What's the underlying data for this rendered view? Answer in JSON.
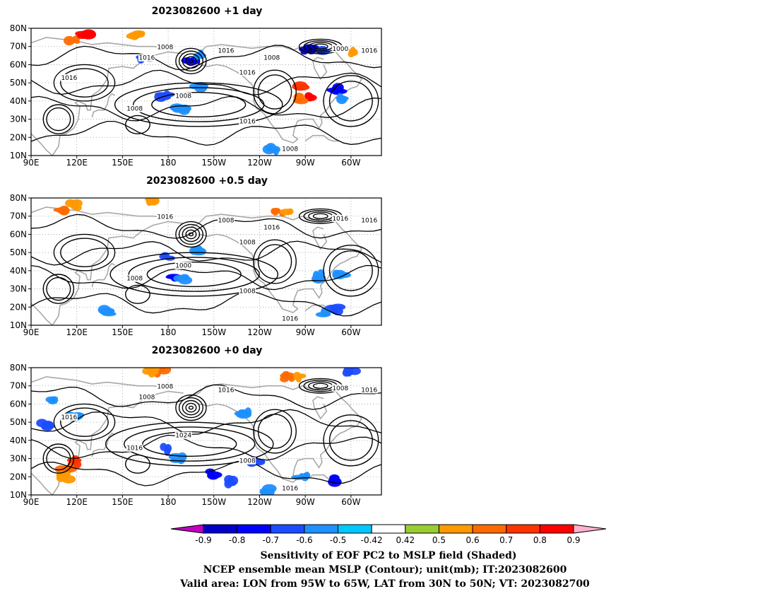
{
  "panels": [
    {
      "title": "2023082600  +1 day",
      "contour_labels": [
        "1008",
        "1016",
        "1016",
        "1016",
        "1008",
        "1016",
        "1008",
        "1000",
        "1016",
        "1016",
        "1008",
        "1008"
      ],
      "shading": [
        {
          "lon": 118,
          "lat": 74,
          "v": 0.6
        },
        {
          "lon": 125,
          "lat": 76,
          "v": 0.8
        },
        {
          "lon": 160,
          "lat": 77,
          "v": 0.5
        },
        {
          "lon": 165,
          "lat": 63,
          "v": -0.6
        },
        {
          "lon": 195,
          "lat": 63,
          "v": -0.7
        },
        {
          "lon": 200,
          "lat": 65,
          "v": -0.5
        },
        {
          "lon": 178,
          "lat": 43,
          "v": -0.6
        },
        {
          "lon": 188,
          "lat": 35,
          "v": -0.5
        },
        {
          "lon": 200,
          "lat": 47,
          "v": -0.5
        },
        {
          "lon": 268,
          "lat": 47,
          "v": 0.7
        },
        {
          "lon": 272,
          "lat": 43,
          "v": 0.8
        },
        {
          "lon": 265,
          "lat": 41,
          "v": 0.6
        },
        {
          "lon": 290,
          "lat": 46,
          "v": -0.7
        },
        {
          "lon": 294,
          "lat": 42,
          "v": -0.5
        },
        {
          "lon": 272,
          "lat": 68,
          "v": -0.8
        },
        {
          "lon": 280,
          "lat": 67,
          "v": -0.6
        },
        {
          "lon": 300,
          "lat": 66,
          "v": 0.5
        },
        {
          "lon": 248,
          "lat": 14,
          "v": -0.5
        }
      ]
    },
    {
      "title": "2023082600  +0.5 day",
      "contour_labels": [
        "1008",
        "1016",
        "1008",
        "1008",
        "1016",
        "1016",
        "1008",
        "1016",
        "1000",
        "1016"
      ],
      "shading": [
        {
          "lon": 112,
          "lat": 74,
          "v": 0.6
        },
        {
          "lon": 118,
          "lat": 76,
          "v": 0.5
        },
        {
          "lon": 168,
          "lat": 78,
          "v": 0.5
        },
        {
          "lon": 178,
          "lat": 48,
          "v": -0.6
        },
        {
          "lon": 183,
          "lat": 36,
          "v": -0.7
        },
        {
          "lon": 188,
          "lat": 35,
          "v": -0.5
        },
        {
          "lon": 200,
          "lat": 52,
          "v": -0.5
        },
        {
          "lon": 252,
          "lat": 72,
          "v": 0.6
        },
        {
          "lon": 258,
          "lat": 71,
          "v": 0.5
        },
        {
          "lon": 280,
          "lat": 37,
          "v": -0.5
        },
        {
          "lon": 290,
          "lat": 19,
          "v": -0.6
        },
        {
          "lon": 283,
          "lat": 17,
          "v": -0.5
        },
        {
          "lon": 140,
          "lat": 17,
          "v": -0.5
        },
        {
          "lon": 293,
          "lat": 38,
          "v": -0.5
        }
      ]
    },
    {
      "title": "2023082600  +0 day",
      "contour_labels": [
        "1016",
        "1008",
        "1016",
        "1008",
        "1016",
        "1024",
        "1008",
        "1016",
        "1008",
        "1016"
      ],
      "shading": [
        {
          "lon": 118,
          "lat": 28,
          "v": 0.7
        },
        {
          "lon": 113,
          "lat": 25,
          "v": 0.6
        },
        {
          "lon": 112,
          "lat": 20,
          "v": 0.5
        },
        {
          "lon": 98,
          "lat": 48,
          "v": -0.6
        },
        {
          "lon": 118,
          "lat": 53,
          "v": -0.5
        },
        {
          "lon": 105,
          "lat": 62,
          "v": -0.5
        },
        {
          "lon": 175,
          "lat": 78,
          "v": 0.6
        },
        {
          "lon": 168,
          "lat": 78,
          "v": 0.5
        },
        {
          "lon": 178,
          "lat": 35,
          "v": -0.6
        },
        {
          "lon": 188,
          "lat": 30,
          "v": -0.5
        },
        {
          "lon": 210,
          "lat": 22,
          "v": -0.7
        },
        {
          "lon": 220,
          "lat": 17,
          "v": -0.6
        },
        {
          "lon": 238,
          "lat": 28,
          "v": -0.6
        },
        {
          "lon": 245,
          "lat": 12,
          "v": -0.5
        },
        {
          "lon": 258,
          "lat": 75,
          "v": 0.6
        },
        {
          "lon": 265,
          "lat": 74,
          "v": 0.5
        },
        {
          "lon": 290,
          "lat": 18,
          "v": -0.7
        },
        {
          "lon": 300,
          "lat": 78,
          "v": -0.6
        },
        {
          "lon": 268,
          "lat": 20,
          "v": -0.5
        },
        {
          "lon": 230,
          "lat": 55,
          "v": -0.5
        }
      ]
    }
  ],
  "axes": {
    "lat_labels": [
      "80N",
      "70N",
      "60N",
      "50N",
      "40N",
      "30N",
      "20N",
      "10N"
    ],
    "lon_labels": [
      "90E",
      "120E",
      "150E",
      "180",
      "150W",
      "120W",
      "90W",
      "60W"
    ],
    "lon_range": [
      90,
      320
    ],
    "lat_range": [
      10,
      80
    ]
  },
  "colorbar": {
    "tick_labels": [
      "-0.9",
      "-0.8",
      "-0.7",
      "-0.6",
      "-0.5",
      "-0.42",
      "0.42",
      "0.5",
      "0.6",
      "0.7",
      "0.8",
      "0.9"
    ],
    "colors": [
      "#c000c0",
      "#0000c8",
      "#0000ff",
      "#1c4cff",
      "#1e90ff",
      "#00c8ff",
      "#ffffff",
      "#9acd32",
      "#ff9900",
      "#ff6a00",
      "#ff3300",
      "#ff0000",
      "#ffb0d0"
    ]
  },
  "caption": {
    "line1": "Sensitivity of EOF PC2 to MSLP field (Shaded)",
    "line2": "NCEP ensemble mean MSLP (Contour); unit(mb); IT:2023082600",
    "line3": "Valid area: LON from 95W to 65W, LAT from 30N to 50N; VT: 2023082700"
  }
}
